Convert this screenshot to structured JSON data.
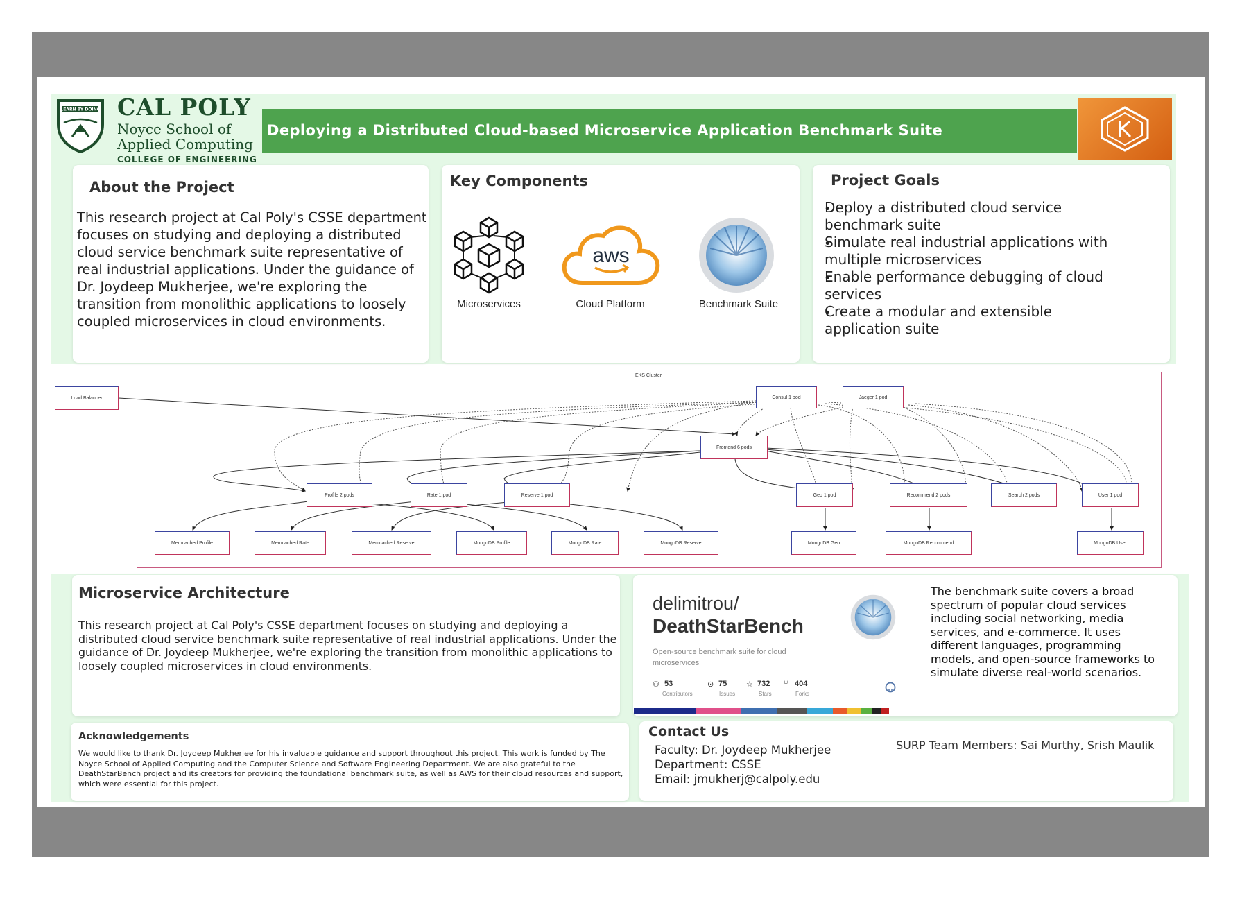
{
  "logo": {
    "name": "CAL POLY",
    "school": "Noyce School of Applied Computing",
    "school_line1": "Noyce School of",
    "school_line2": "Applied Computing",
    "college": "COLLEGE OF ENGINEERING",
    "seal_text": "LEARN BY DOING"
  },
  "banner": {
    "title": "Deploying a Distributed Cloud-based Microservice Application Benchmark Suite",
    "color": "#4ea34e",
    "badge_icon": "kubernetes-k-icon",
    "badge_color": "#e8782a"
  },
  "about": {
    "heading": "About the Project",
    "text": "This research project at Cal Poly's CSSE department focuses on studying and deploying a distributed cloud service benchmark suite representative of real industrial applications. Under the guidance of Dr. Joydeep Mukherjee, we're exploring the transition from monolithic applications to loosely coupled microservices in cloud environments."
  },
  "key_components": {
    "heading": "Key Components",
    "items": [
      {
        "label": "Microservices",
        "icon": "hexagon-cubes-icon"
      },
      {
        "label": "Cloud Platform",
        "icon": "aws-cloud-logo",
        "logo_text": "aws"
      },
      {
        "label": "Benchmark Suite",
        "icon": "deathstar-icon"
      }
    ]
  },
  "goals": {
    "heading": "Project Goals",
    "items": [
      "Deploy a distributed cloud service benchmark suite",
      "Simulate real industrial applications with multiple microservices",
      "Enable performance debugging of cloud services",
      "Create a modular and extensible application suite"
    ]
  },
  "diagram": {
    "cluster_label": "EKS Cluster",
    "nodes": {
      "load_balancer": "Load Balancer",
      "consul": "Consul 1 pod",
      "jaeger": "Jaeger 1 pod",
      "frontend": "Frontend 6 pods",
      "profile": "Profile 2 pods",
      "rate": "Rate 1 pod",
      "reserve": "Reserve 1 pod",
      "geo": "Geo 1 pod",
      "recommend": "Recommend 2 pods",
      "search": "Search 2 pods",
      "user": "User 1 pod",
      "memcached_profile": "Memcached Profile",
      "memcached_rate": "Memcached Rate",
      "memcached_reserve": "Memcached Reserve",
      "mongodb_profile": "MongoDB Profile",
      "mongodb_rate": "MongoDB Rate",
      "mongodb_reserve": "MongoDB Reserve",
      "mongodb_geo": "MongoDB Geo",
      "mongodb_recommend": "MongoDB Recommend",
      "mongodb_user": "MongoDB User"
    }
  },
  "architecture": {
    "heading": "Microservice Architecture",
    "text": "This research project at Cal Poly's CSSE department focuses on studying and deploying a distributed cloud service benchmark suite representative of real industrial applications. Under the guidance of Dr. Joydeep Mukherjee, we're exploring the transition from monolithic applications to loosely coupled microservices in cloud environments."
  },
  "github_card": {
    "owner": "delimitrou/",
    "repo": "DeathStarBench",
    "description": "Open-source benchmark suite for cloud microservices",
    "stats": [
      {
        "value": "53",
        "label": "Contributors",
        "icon": "people-icon"
      },
      {
        "value": "75",
        "label": "Issues",
        "icon": "issue-icon"
      },
      {
        "value": "732",
        "label": "Stars",
        "icon": "star-icon"
      },
      {
        "value": "404",
        "label": "Forks",
        "icon": "fork-icon"
      }
    ],
    "language_colors": [
      "#1c2a8a",
      "#e0508a",
      "#3f6fb0",
      "#555555",
      "#38a8d8",
      "#e85a2a",
      "#f0c030",
      "#5ab040",
      "#222222",
      "#c02020"
    ]
  },
  "suite_summary": {
    "text": "The benchmark suite covers a broad spectrum of popular cloud services including social networking, media services, and e-commerce. It uses different languages, programming models, and open-source frameworks to simulate diverse real-world scenarios."
  },
  "acknowledgements": {
    "heading": "Acknowledgements",
    "text": "We would like to thank Dr. Joydeep Mukherjee for his invaluable guidance and support throughout this project. This work is funded by The Noyce School of Applied Computing and the Computer Science and Software Engineering Department. We are also grateful to the DeathStarBench project and its creators for providing the foundational benchmark suite, as well as AWS for their cloud resources and support, which were essential for this project."
  },
  "contact": {
    "heading": "Contact Us",
    "faculty": "Faculty: Dr. Joydeep Mukherjee",
    "department": "Department: CSSE",
    "email": "Email: jmukherj@calpoly.edu",
    "team": "SURP Team Members: Sai Murthy, Srish Maulik"
  }
}
